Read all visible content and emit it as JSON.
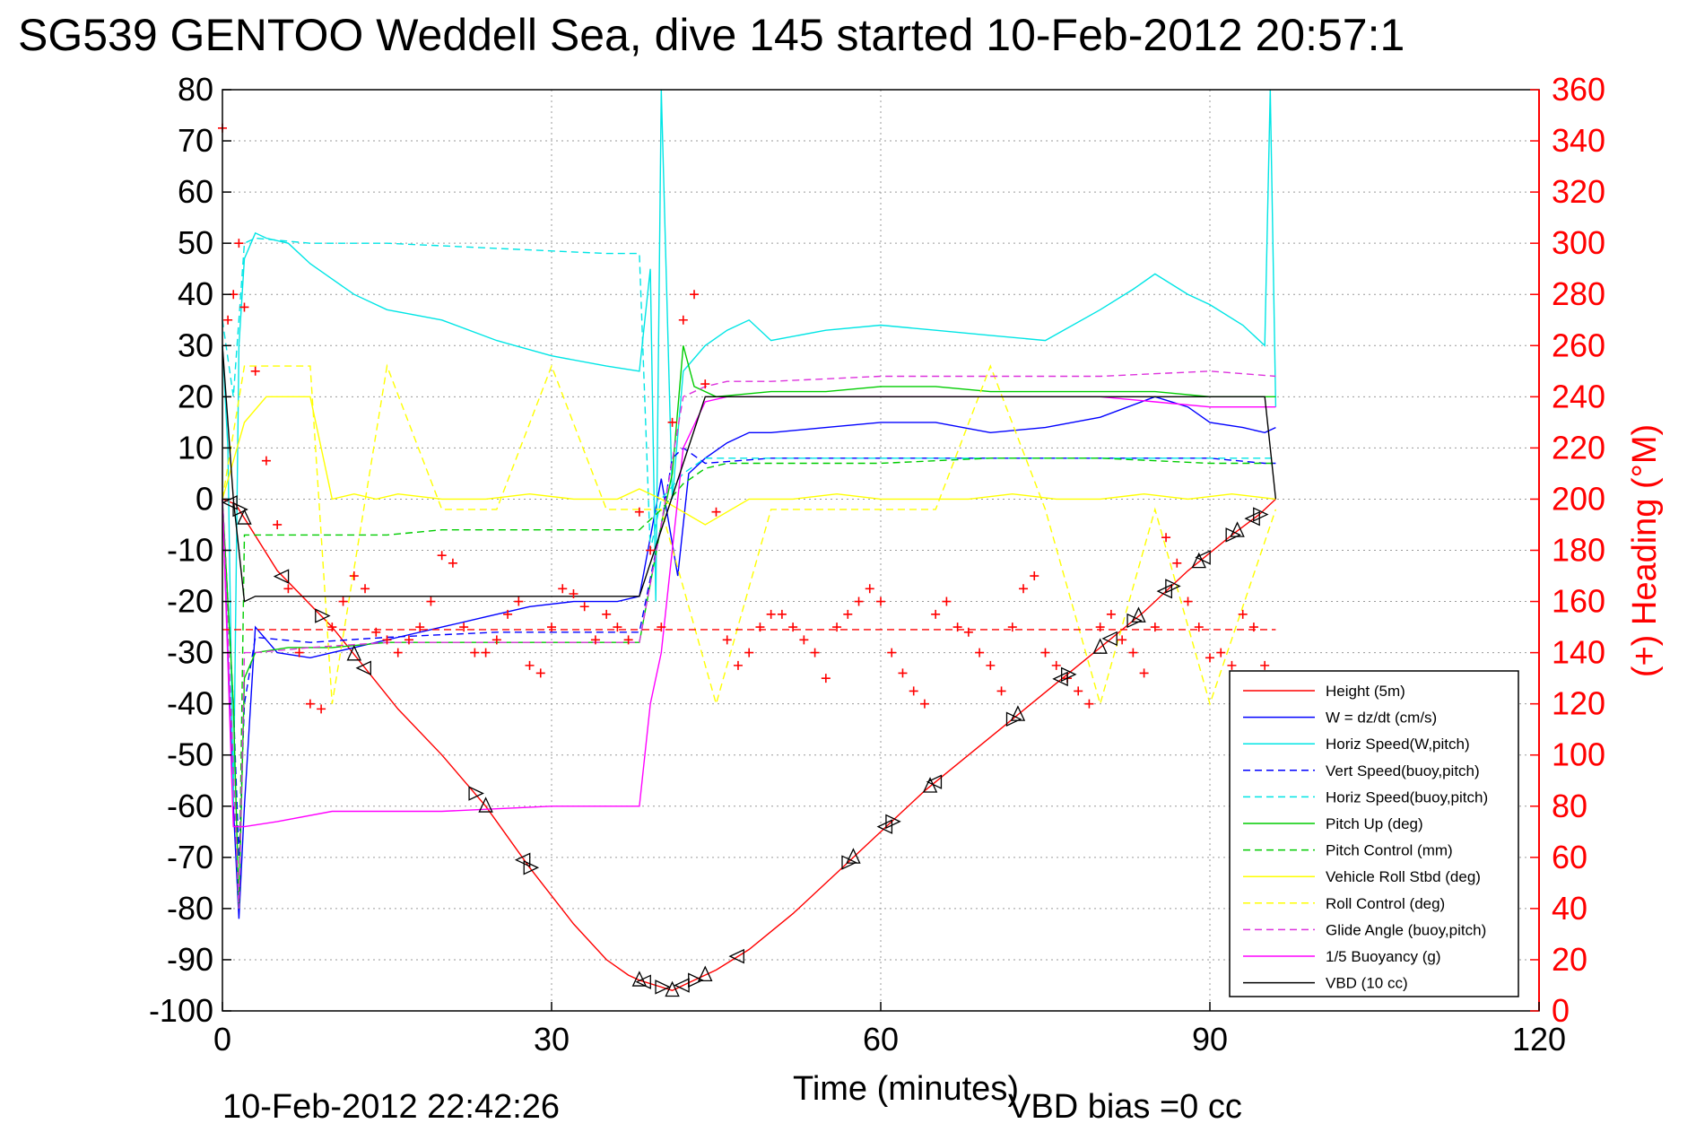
{
  "chart_data": {
    "type": "line",
    "title": "SG539 GENTOO Weddell Sea, dive 145 started 10-Feb-2012 20:57:1",
    "xlabel": "Time (minutes)",
    "ylabel_right": "(+) Heading (°M)",
    "xlim": [
      0,
      120
    ],
    "ylim_left": [
      -100,
      80
    ],
    "ylim_right": [
      0,
      360
    ],
    "x_ticks": [
      "0",
      "30",
      "60",
      "90",
      "120"
    ],
    "y_ticks_left": [
      "80",
      "70",
      "60",
      "50",
      "40",
      "30",
      "20",
      "10",
      "0",
      "-10",
      "-20",
      "-30",
      "-40",
      "-50",
      "-60",
      "-70",
      "-80",
      "-90",
      "-100"
    ],
    "y_ticks_right": [
      "360",
      "340",
      "320",
      "300",
      "280",
      "260",
      "240",
      "220",
      "200",
      "180",
      "160",
      "140",
      "120",
      "100",
      "80",
      "60",
      "40",
      "20",
      "0"
    ],
    "grid": true,
    "legend_position": "lower-right",
    "series": [
      {
        "name": "Height (5m)",
        "color": "#ff0000",
        "style": "solid",
        "x": [
          0,
          1.2,
          5,
          10,
          13,
          16,
          20,
          24,
          28,
          32,
          35,
          37,
          38,
          39.5,
          41,
          43,
          45,
          48,
          52,
          56,
          60,
          64,
          68,
          72,
          76,
          80,
          84,
          88,
          92,
          94.5,
          96
        ],
        "y": [
          0,
          -1,
          -14,
          -25,
          -33,
          -41,
          -50,
          -60,
          -72,
          -83,
          -90,
          -93,
          -94,
          -95,
          -96,
          -94,
          -92,
          -88,
          -81,
          -73,
          -65,
          -57,
          -50,
          -43,
          -36,
          -29,
          -22,
          -14,
          -7,
          -3,
          0
        ]
      },
      {
        "name": "W = dz/dt (cm/s)",
        "color": "#0000ff",
        "style": "solid",
        "x": [
          0,
          0.5,
          1,
          1.5,
          2,
          3,
          5,
          8,
          10,
          12,
          14,
          16,
          20,
          24,
          28,
          32,
          36,
          38,
          40,
          41.5,
          42.5,
          44,
          46,
          48,
          50,
          55,
          60,
          65,
          70,
          75,
          80,
          85,
          88,
          90,
          93,
          95,
          96
        ],
        "y": [
          0,
          -30,
          -60,
          -82,
          -60,
          -25,
          -30,
          -31,
          -30,
          -29,
          -28,
          -27,
          -25,
          -23,
          -21,
          -20,
          -20,
          -19,
          4,
          -15,
          5,
          8,
          11,
          13,
          13,
          14,
          15,
          15,
          13,
          14,
          16,
          20,
          18,
          15,
          14,
          13,
          14
        ]
      },
      {
        "name": "Horiz Speed(W,pitch)",
        "color": "#00e5e5",
        "style": "solid",
        "x": [
          0,
          0.5,
          1,
          1.5,
          2,
          3,
          4,
          6,
          8,
          10,
          12,
          15,
          20,
          25,
          30,
          35,
          38,
          39,
          39.5,
          40,
          41,
          42,
          44,
          46,
          48,
          50,
          55,
          60,
          65,
          70,
          75,
          80,
          83,
          85,
          88,
          90,
          93,
          95,
          95.5,
          96
        ],
        "y": [
          30,
          10,
          -60,
          30,
          47,
          52,
          51,
          50,
          46,
          43,
          40,
          37,
          35,
          31,
          28,
          26,
          25,
          45,
          -20,
          80,
          0,
          25,
          30,
          33,
          35,
          31,
          33,
          34,
          33,
          32,
          31,
          37,
          41,
          44,
          40,
          38,
          34,
          30,
          80,
          18
        ]
      },
      {
        "name": "Vert Speed(buoy,pitch)",
        "color": "#0000ff",
        "style": "dashed",
        "x": [
          0,
          1,
          1.5,
          2,
          3,
          8,
          15,
          25,
          35,
          38,
          40,
          41,
          42,
          44,
          50,
          60,
          70,
          80,
          90,
          95,
          96
        ],
        "y": [
          0,
          -40,
          -70,
          -40,
          -27,
          -28,
          -27,
          -26,
          -26,
          -26,
          -5,
          8,
          10,
          7,
          8,
          8,
          8,
          8,
          8,
          7,
          7
        ]
      },
      {
        "name": "Horiz Speed(buoy,pitch)",
        "color": "#00e5e5",
        "style": "dashed",
        "x": [
          0,
          1,
          2,
          3,
          8,
          15,
          25,
          35,
          38,
          39,
          40,
          42,
          44,
          50,
          60,
          70,
          80,
          90,
          95,
          96
        ],
        "y": [
          35,
          20,
          50,
          51,
          50,
          50,
          49,
          48,
          48,
          -10,
          0,
          5,
          8,
          8,
          8,
          8,
          8,
          8,
          8,
          8
        ]
      },
      {
        "name": "Pitch Up (deg)",
        "color": "#00cc00",
        "style": "solid",
        "x": [
          0,
          1,
          1.5,
          2,
          3,
          6,
          10,
          15,
          20,
          25,
          30,
          35,
          38,
          40,
          41,
          42,
          43,
          45,
          50,
          55,
          60,
          65,
          70,
          75,
          80,
          85,
          90,
          95,
          96
        ],
        "y": [
          0,
          -40,
          -80,
          -35,
          -30,
          -29,
          -29,
          -28,
          -28,
          -28,
          -28,
          -28,
          -28,
          -5,
          5,
          30,
          22,
          20,
          21,
          21,
          22,
          22,
          21,
          21,
          21,
          21,
          20,
          20,
          20
        ]
      },
      {
        "name": "Pitch Control (mm)",
        "color": "#00cc00",
        "style": "dashed",
        "x": [
          0,
          1.5,
          2,
          5,
          10,
          15,
          20,
          30,
          38,
          40,
          42,
          44,
          46,
          50,
          60,
          70,
          80,
          90,
          96
        ],
        "y": [
          0,
          -80,
          -7,
          -7,
          -7,
          -7,
          -6,
          -6,
          -6,
          -2,
          3,
          6,
          7,
          7,
          7,
          8,
          8,
          7,
          7
        ]
      },
      {
        "name": "Vehicle Roll Stbd (deg)",
        "color": "#ffff00",
        "style": "solid",
        "x": [
          0,
          2,
          4,
          8,
          10,
          12,
          14,
          16,
          20,
          24,
          28,
          32,
          36,
          38,
          40,
          44,
          48,
          52,
          56,
          60,
          64,
          68,
          72,
          76,
          80,
          84,
          88,
          92,
          96
        ],
        "y": [
          0,
          15,
          20,
          20,
          0,
          1,
          0,
          1,
          0,
          0,
          1,
          0,
          0,
          2,
          0,
          -5,
          0,
          0,
          1,
          0,
          0,
          0,
          1,
          0,
          0,
          1,
          0,
          1,
          0
        ]
      },
      {
        "name": "Roll Control (deg)",
        "color": "#ffff00",
        "style": "dashed",
        "x": [
          0,
          2,
          4,
          8,
          10,
          15,
          20,
          25,
          30,
          35,
          38,
          40,
          45,
          50,
          55,
          60,
          65,
          70,
          75,
          80,
          85,
          90,
          96
        ],
        "y": [
          0,
          26,
          26,
          26,
          -40,
          26,
          -2,
          -2,
          26,
          -2,
          -2,
          -2,
          -40,
          -2,
          -2,
          -2,
          -2,
          26,
          -2,
          -40,
          -2,
          -40,
          -2
        ]
      },
      {
        "name": "Glide Angle (buoy,pitch)",
        "color": "#dd33dd",
        "style": "dashed",
        "x": [
          0,
          1.5,
          2,
          3,
          8,
          15,
          25,
          35,
          38,
          40,
          42,
          44,
          46,
          50,
          60,
          70,
          80,
          90,
          96
        ],
        "y": [
          0,
          -80,
          -30,
          -30,
          -29,
          -28,
          -28,
          -28,
          -28,
          -5,
          20,
          22,
          23,
          23,
          24,
          24,
          24,
          25,
          24
        ]
      },
      {
        "name": "1/5 Buoyancy (g)",
        "color": "#ff00ff",
        "style": "solid",
        "x": [
          0,
          1,
          2,
          5,
          10,
          20,
          30,
          38,
          39,
          40,
          42,
          44,
          46,
          50,
          60,
          70,
          80,
          85,
          90,
          95,
          96
        ],
        "y": [
          0,
          -64,
          -64,
          -63,
          -61,
          -61,
          -60,
          -60,
          -40,
          -30,
          10,
          19,
          20,
          20,
          20,
          20,
          20,
          19,
          18,
          18,
          18
        ]
      },
      {
        "name": "VBD (10 cc)",
        "color": "#000000",
        "style": "solid",
        "x": [
          0,
          1,
          1.5,
          2,
          3,
          10,
          20,
          30,
          38,
          44,
          44.5,
          50,
          60,
          70,
          80,
          90,
          95,
          96
        ],
        "y": [
          30,
          0,
          -10,
          -20,
          -19,
          -19,
          -19,
          -19,
          -19,
          20,
          20,
          20,
          20,
          20,
          20,
          20,
          20,
          0
        ]
      }
    ],
    "heading_series": {
      "axis": "right",
      "color": "#ff0000",
      "marker": "+",
      "mean_heading": 149,
      "x": [
        0,
        0.5,
        1,
        1.5,
        2,
        3,
        4,
        5,
        6,
        7,
        8,
        9,
        10,
        11,
        12,
        13,
        14,
        15,
        16,
        17,
        18,
        19,
        20,
        21,
        22,
        23,
        24,
        25,
        26,
        27,
        28,
        29,
        30,
        31,
        32,
        33,
        34,
        35,
        36,
        37,
        38,
        39,
        40,
        41,
        42,
        43,
        44,
        45,
        46,
        47,
        48,
        49,
        50,
        51,
        52,
        53,
        54,
        55,
        56,
        57,
        58,
        59,
        60,
        61,
        62,
        63,
        64,
        65,
        66,
        67,
        68,
        69,
        70,
        71,
        72,
        73,
        74,
        75,
        76,
        77,
        78,
        79,
        80,
        81,
        82,
        83,
        84,
        85,
        86,
        87,
        88,
        89,
        90,
        91,
        92,
        93,
        94,
        95,
        96
      ],
      "y": [
        345,
        270,
        280,
        300,
        275,
        250,
        215,
        190,
        165,
        140,
        120,
        118,
        150,
        160,
        170,
        165,
        148,
        145,
        140,
        145,
        150,
        160,
        178,
        175,
        150,
        140,
        140,
        145,
        155,
        160,
        135,
        132,
        150,
        165,
        163,
        158,
        145,
        155,
        150,
        145,
        195,
        180,
        150,
        230,
        270,
        280,
        245,
        195,
        145,
        135,
        140,
        150,
        155,
        155,
        150,
        145,
        140,
        130,
        150,
        155,
        160,
        165,
        160,
        140,
        132,
        125,
        120,
        155,
        160,
        150,
        148,
        140,
        135,
        125,
        150,
        165,
        170,
        140,
        135,
        130,
        125,
        120,
        150,
        155,
        145,
        140,
        132,
        150,
        185,
        175,
        160,
        150,
        138,
        140,
        135,
        155,
        150,
        135,
        130
      ]
    },
    "dive_markers": {
      "marker": "triangle",
      "color": "#000000",
      "on_series": "Height (5m)",
      "x": [
        0.8,
        1.5,
        2,
        5.5,
        9,
        12,
        13,
        23,
        24,
        27.5,
        28,
        38,
        38.5,
        40,
        41,
        42,
        43,
        44,
        47,
        57,
        57.5,
        60.5,
        61,
        64.5,
        65,
        72,
        72.5,
        76.5,
        77,
        80,
        81,
        83,
        83.5,
        86,
        86.5,
        89,
        89.5,
        92,
        92.5,
        94,
        94.5
      ]
    },
    "footnotes": {
      "timestamp": "10-Feb-2012 22:42:26",
      "vbd_bias": "VBD bias =0 cc"
    }
  }
}
